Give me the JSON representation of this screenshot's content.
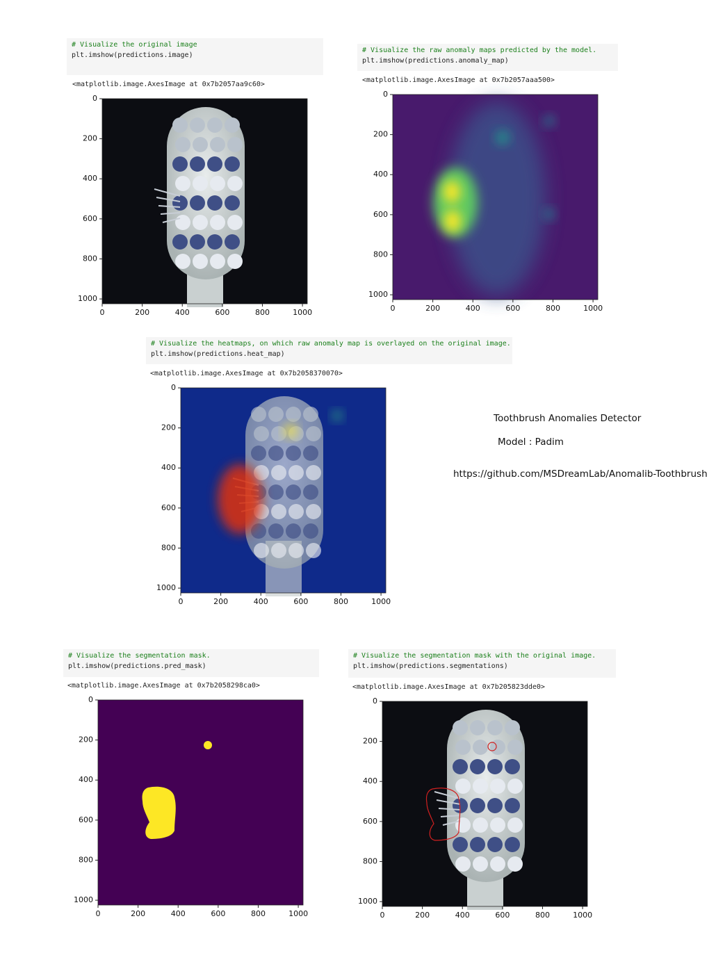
{
  "cells": [
    {
      "comment": "# Visualize the original image",
      "code": "plt.imshow(predictions.image)",
      "output": "<matplotlib.image.AxesImage at 0x7b2057aa9c60>",
      "xticks": [
        0,
        200,
        400,
        600,
        800,
        1000
      ],
      "yticks": [
        0,
        200,
        400,
        600,
        800,
        1000
      ]
    },
    {
      "comment": "# Visualize the raw anomaly maps predicted by the model.",
      "code": "plt.imshow(predictions.anomaly_map)",
      "output": "<matplotlib.image.AxesImage at 0x7b2057aaa500>",
      "xticks": [
        0,
        200,
        400,
        600,
        800,
        1000
      ],
      "yticks": [
        0,
        200,
        400,
        600,
        800,
        1000
      ]
    },
    {
      "comment": "# Visualize the heatmaps, on which raw anomaly map is overlayed on the original image.",
      "code": "plt.imshow(predictions.heat_map)",
      "output": "<matplotlib.image.AxesImage at 0x7b2058370070>",
      "xticks": [
        0,
        200,
        400,
        600,
        800,
        1000
      ],
      "yticks": [
        0,
        200,
        400,
        600,
        800,
        1000
      ]
    },
    {
      "comment": "# Visualize the segmentation mask.",
      "code": "plt.imshow(predictions.pred_mask)",
      "output": "<matplotlib.image.AxesImage at 0x7b2058298ca0>",
      "xticks": [
        0,
        200,
        400,
        600,
        800,
        1000
      ],
      "yticks": [
        0,
        200,
        400,
        600,
        800,
        1000
      ]
    },
    {
      "comment": "# Visualize the segmentation mask with the original image.",
      "code": "plt.imshow(predictions.segmentations)",
      "output": "<matplotlib.image.AxesImage at 0x7b205823dde0>",
      "xticks": [
        0,
        200,
        400,
        600,
        800,
        1000
      ],
      "yticks": [
        0,
        200,
        400,
        600,
        800,
        1000
      ]
    }
  ],
  "info": {
    "title": "Toothbrush Anomalies Detector",
    "model": "Model : Padim",
    "link": "https://github.com/MSDreamLab/Anomalib-Toothbrush"
  }
}
